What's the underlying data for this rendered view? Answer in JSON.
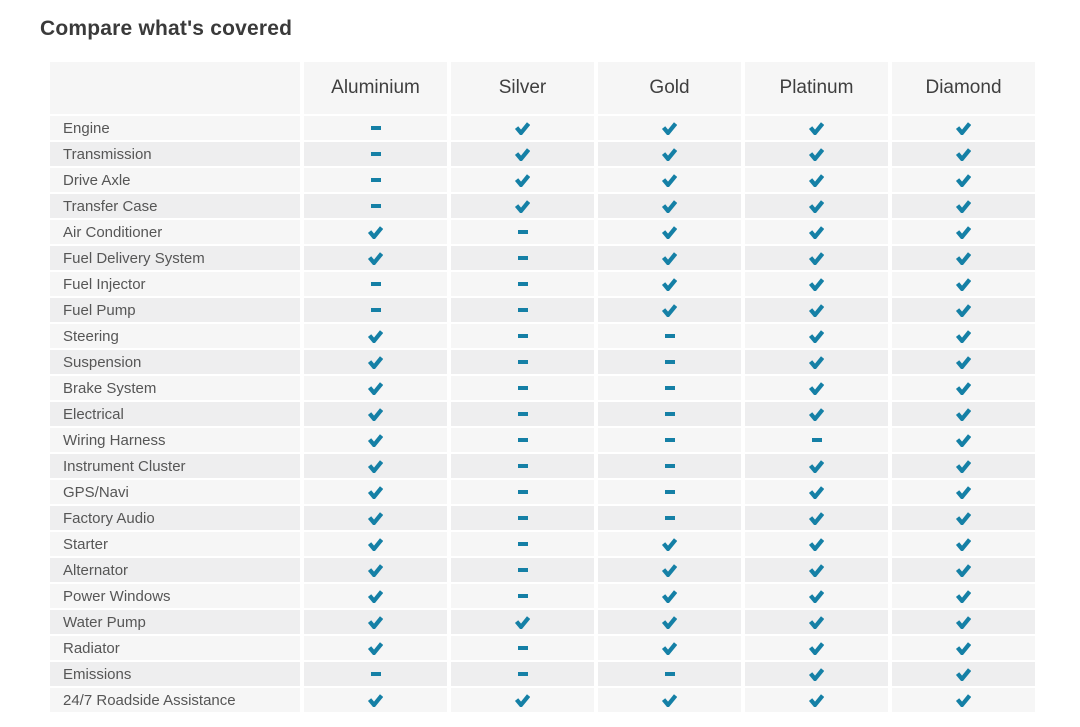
{
  "title": "Compare what's covered",
  "colors": {
    "accent": "#1580a6",
    "row_light": "#f6f6f6",
    "row_dark": "#eeeeef",
    "header_bg": "#f6f6f6",
    "title_color": "#3a3a3a",
    "label_color": "#565656",
    "header_text": "#3f3f3f"
  },
  "icons": {
    "check": "check-icon",
    "dash": "dash-icon"
  },
  "table": {
    "plans": [
      "Aluminium",
      "Silver",
      "Gold",
      "Platinum",
      "Diamond"
    ],
    "rows": [
      {
        "label": "Engine",
        "values": [
          "dash",
          "check",
          "check",
          "check",
          "check"
        ]
      },
      {
        "label": "Transmission",
        "values": [
          "dash",
          "check",
          "check",
          "check",
          "check"
        ]
      },
      {
        "label": "Drive Axle",
        "values": [
          "dash",
          "check",
          "check",
          "check",
          "check"
        ]
      },
      {
        "label": "Transfer Case",
        "values": [
          "dash",
          "check",
          "check",
          "check",
          "check"
        ]
      },
      {
        "label": "Air Conditioner",
        "values": [
          "check",
          "dash",
          "check",
          "check",
          "check"
        ]
      },
      {
        "label": "Fuel Delivery System",
        "values": [
          "check",
          "dash",
          "check",
          "check",
          "check"
        ]
      },
      {
        "label": "Fuel Injector",
        "values": [
          "dash",
          "dash",
          "check",
          "check",
          "check"
        ]
      },
      {
        "label": "Fuel Pump",
        "values": [
          "dash",
          "dash",
          "check",
          "check",
          "check"
        ]
      },
      {
        "label": "Steering",
        "values": [
          "check",
          "dash",
          "dash",
          "check",
          "check"
        ]
      },
      {
        "label": "Suspension",
        "values": [
          "check",
          "dash",
          "dash",
          "check",
          "check"
        ]
      },
      {
        "label": "Brake System",
        "values": [
          "check",
          "dash",
          "dash",
          "check",
          "check"
        ]
      },
      {
        "label": "Electrical",
        "values": [
          "check",
          "dash",
          "dash",
          "check",
          "check"
        ]
      },
      {
        "label": "Wiring Harness",
        "values": [
          "check",
          "dash",
          "dash",
          "dash",
          "check"
        ]
      },
      {
        "label": "Instrument Cluster",
        "values": [
          "check",
          "dash",
          "dash",
          "check",
          "check"
        ]
      },
      {
        "label": "GPS/Navi",
        "values": [
          "check",
          "dash",
          "dash",
          "check",
          "check"
        ]
      },
      {
        "label": "Factory Audio",
        "values": [
          "check",
          "dash",
          "dash",
          "check",
          "check"
        ]
      },
      {
        "label": "Starter",
        "values": [
          "check",
          "dash",
          "check",
          "check",
          "check"
        ]
      },
      {
        "label": "Alternator",
        "values": [
          "check",
          "dash",
          "check",
          "check",
          "check"
        ]
      },
      {
        "label": "Power Windows",
        "values": [
          "check",
          "dash",
          "check",
          "check",
          "check"
        ]
      },
      {
        "label": "Water Pump",
        "values": [
          "check",
          "check",
          "check",
          "check",
          "check"
        ]
      },
      {
        "label": "Radiator",
        "values": [
          "check",
          "dash",
          "check",
          "check",
          "check"
        ]
      },
      {
        "label": "Emissions",
        "values": [
          "dash",
          "dash",
          "dash",
          "check",
          "check"
        ]
      },
      {
        "label": "24/7 Roadside Assistance",
        "values": [
          "check",
          "check",
          "check",
          "check",
          "check"
        ]
      }
    ]
  }
}
